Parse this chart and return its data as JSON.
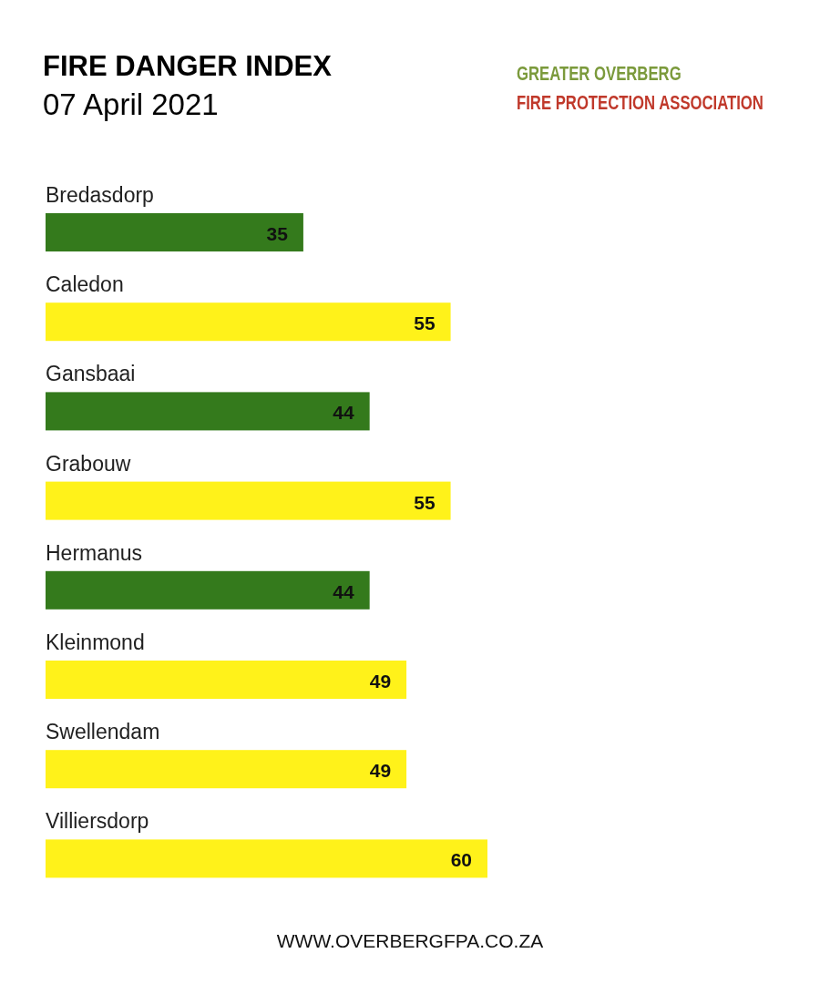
{
  "chart_data": {
    "type": "bar",
    "orientation": "horizontal",
    "title": "FIRE DANGER INDEX",
    "subtitle": "07 April 2021",
    "categories": [
      "Bredasdorp",
      "Caledon",
      "Gansbaai",
      "Grabouw",
      "Hermanus",
      "Kleinmond",
      "Swellendam",
      "Villiersdorp"
    ],
    "values": [
      35,
      55,
      44,
      55,
      44,
      49,
      49,
      60
    ],
    "colors": [
      "#347a1c",
      "#fff21a",
      "#347a1c",
      "#fff21a",
      "#347a1c",
      "#fff21a",
      "#fff21a",
      "#fff21a"
    ],
    "data_labels": true,
    "annotations": [
      "GREATER OVERBERG",
      "FIRE PROTECTION ASSOCIATION",
      "WWW.OVERBERGFPA.CO.ZA"
    ]
  }
}
